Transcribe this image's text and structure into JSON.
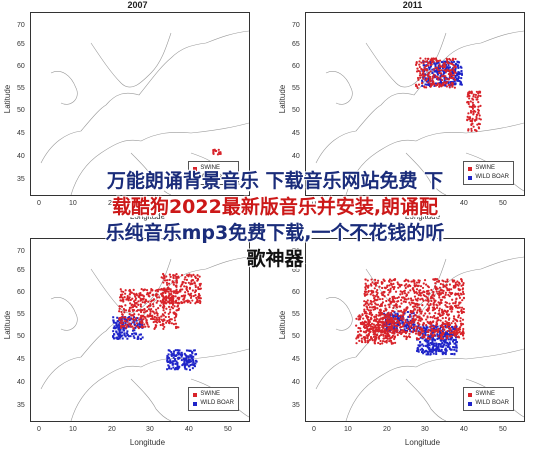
{
  "panels": [
    {
      "title": "2007",
      "xlabel": "Longitude",
      "ylabel": "Latitude"
    },
    {
      "title": "2011",
      "xlabel": "Longitude",
      "ylabel": "Latitude"
    },
    {
      "title": "",
      "xlabel": "Longitude",
      "ylabel": "Latitude"
    },
    {
      "title": "",
      "xlabel": "Longitude",
      "ylabel": "Latitude"
    }
  ],
  "yticks": [
    "70",
    "65",
    "60",
    "55",
    "50",
    "45",
    "40",
    "35"
  ],
  "xticks": [
    "0",
    "10",
    "20",
    "30",
    "40",
    "50"
  ],
  "legend": {
    "swine": "SWINE",
    "boar": "WILD BOAR"
  },
  "overlay": {
    "line1": "万能朗诵背景音乐 下载音乐网站免费 下",
    "line2": "载酷狗2022最新版音乐并安装,朗诵配",
    "line3": "乐纯音乐mp3免费下载,一个不花钱的听",
    "line4": "歌神器"
  },
  "colors": {
    "swine": "#d8232a",
    "boar": "#1f24c8",
    "overlay": "#1a2c7a"
  }
}
